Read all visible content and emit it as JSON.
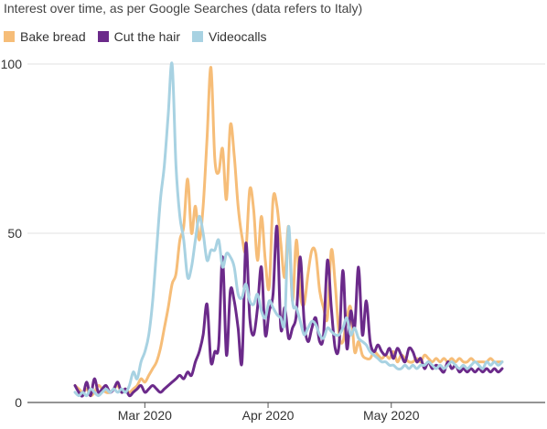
{
  "colors": {
    "bake_bread": "#f6bd78",
    "cut_the_hair": "#6b2a8a",
    "videocalls": "#a8d2e2",
    "grid": "#e2e2e2",
    "axis": "#555555"
  },
  "chart_data": {
    "type": "line",
    "subtitle": "Interest over time, as per Google Searches (data refers to Italy)",
    "legend_position": "top-left",
    "grid": true,
    "x_start": "2020-02-13",
    "x_end": "2020-05-27",
    "x_ticks": [
      {
        "label": "Mar 2020",
        "day": 17
      },
      {
        "label": "Apr 2020",
        "day": 47
      },
      {
        "label": "May 2020",
        "day": 77
      }
    ],
    "y_ticks": [
      "0",
      "50",
      "100"
    ],
    "ylim": [
      0,
      100
    ],
    "series": [
      {
        "name": "Bake bread",
        "color": "#f6bd78",
        "values": [
          5,
          4,
          3,
          4,
          2,
          3,
          5,
          4,
          3,
          3,
          4,
          5,
          3,
          4,
          3,
          4,
          5,
          7,
          6,
          8,
          10,
          12,
          16,
          22,
          28,
          35,
          38,
          48,
          52,
          66,
          50,
          58,
          48,
          58,
          78,
          99,
          72,
          68,
          75,
          60,
          82,
          73,
          58,
          49,
          45,
          63,
          57,
          42,
          55,
          42,
          34,
          60,
          58,
          47,
          37,
          52,
          30,
          48,
          32,
          29,
          38,
          45,
          44,
          33,
          28,
          25,
          45,
          35,
          20,
          18,
          25,
          28,
          15,
          18,
          14,
          13,
          13,
          15,
          14,
          13,
          14,
          13,
          15,
          12,
          14,
          13,
          12,
          12,
          13,
          12,
          14,
          13,
          12,
          13,
          12,
          13,
          12,
          13,
          12,
          13,
          12,
          12,
          13,
          12,
          12,
          12,
          12,
          13,
          12,
          12,
          12
        ]
      },
      {
        "name": "Cut the hair",
        "color": "#6b2a8a",
        "values": [
          5,
          3,
          2,
          6,
          2,
          7,
          3,
          4,
          5,
          3,
          4,
          6,
          3,
          4,
          2,
          3,
          4,
          5,
          3,
          4,
          5,
          4,
          3,
          4,
          5,
          6,
          7,
          8,
          7,
          9,
          8,
          12,
          15,
          20,
          29,
          12,
          15,
          17,
          43,
          14,
          33,
          30,
          22,
          12,
          47,
          25,
          20,
          28,
          40,
          20,
          27,
          32,
          52,
          22,
          28,
          19,
          22,
          26,
          43,
          24,
          18,
          22,
          25,
          18,
          20,
          42,
          28,
          16,
          17,
          39,
          16,
          27,
          22,
          40,
          20,
          30,
          18,
          15,
          17,
          15,
          14,
          16,
          13,
          16,
          14,
          12,
          16,
          15,
          12,
          13,
          10,
          12,
          10,
          11,
          10,
          9,
          12,
          10,
          11,
          9,
          10,
          9,
          10,
          9,
          10,
          9,
          10,
          9,
          10,
          9,
          10
        ]
      },
      {
        "name": "Videocalls",
        "color": "#a8d2e2",
        "values": [
          3,
          2,
          3,
          2,
          4,
          3,
          2,
          3,
          4,
          3,
          4,
          3,
          4,
          3,
          5,
          9,
          7,
          12,
          15,
          20,
          30,
          45,
          60,
          70,
          85,
          100,
          70,
          55,
          48,
          37,
          40,
          48,
          55,
          50,
          42,
          45,
          45,
          48,
          40,
          44,
          43,
          40,
          32,
          31,
          35,
          30,
          29,
          32,
          27,
          25,
          30,
          28,
          26,
          25,
          24,
          52,
          30,
          28,
          24,
          20,
          22,
          24,
          23,
          20,
          19,
          22,
          21,
          20,
          20,
          22,
          25,
          20,
          22,
          19,
          18,
          17,
          15,
          14,
          13,
          12,
          12,
          11,
          11,
          10,
          10,
          11,
          10,
          11,
          10,
          11,
          11,
          12,
          11,
          10,
          11,
          10,
          11,
          12,
          11,
          10,
          11,
          10,
          11,
          12,
          11,
          10,
          12,
          11,
          12,
          11,
          12
        ]
      }
    ]
  }
}
